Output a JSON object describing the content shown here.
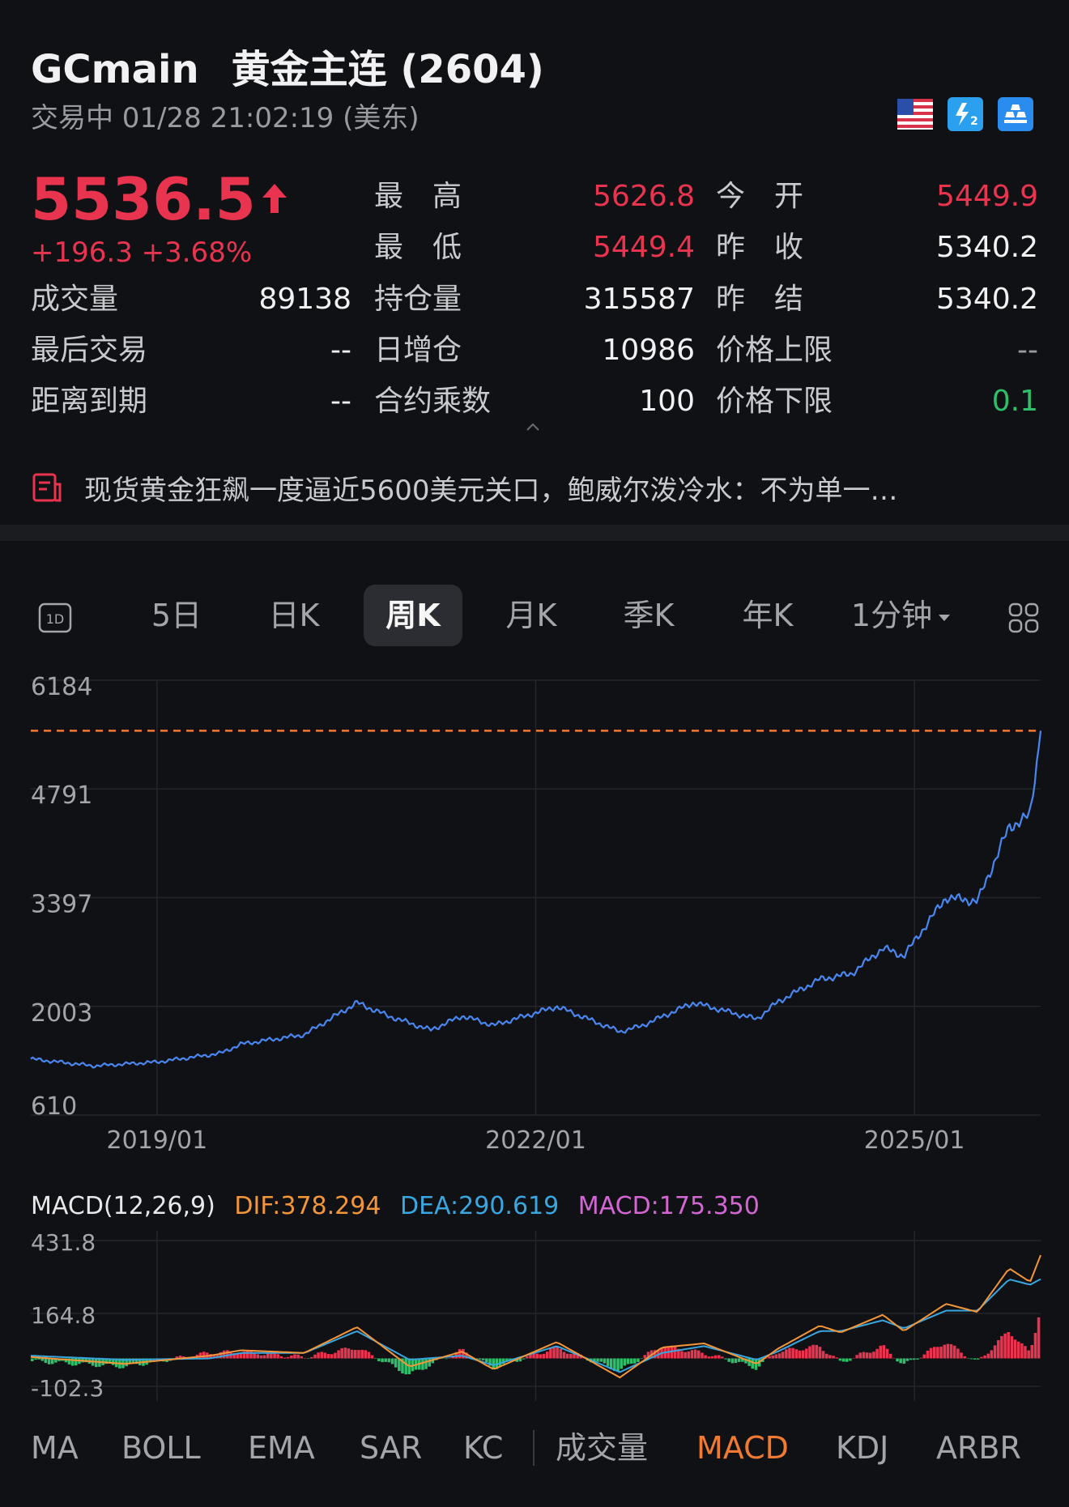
{
  "header": {
    "symbol": "GCmain",
    "name": "黄金主连 (2604)",
    "status_line": "交易中 01/28 21:02:19 (美东)"
  },
  "quote": {
    "price": "5536.5",
    "change": "+196.3 +3.68%",
    "fields": [
      {
        "label": "最　高",
        "value": "5626.8",
        "tone": "red"
      },
      {
        "label": "今　开",
        "value": "5449.9",
        "tone": "red"
      },
      {
        "label": "最　低",
        "value": "5449.4",
        "tone": "red"
      },
      {
        "label": "昨　收",
        "value": "5340.2",
        "tone": "white"
      },
      {
        "label": "成交量",
        "value": "89138",
        "tone": "white"
      },
      {
        "label": "持仓量",
        "value": "315587",
        "tone": "white"
      },
      {
        "label": "昨　结",
        "value": "5340.2",
        "tone": "white"
      },
      {
        "label": "最后交易",
        "value": "--",
        "tone": "white"
      },
      {
        "label": "日增仓",
        "value": "10986",
        "tone": "white"
      },
      {
        "label": "价格上限",
        "value": "--",
        "tone": "dim"
      },
      {
        "label": "距离到期",
        "value": "--",
        "tone": "white"
      },
      {
        "label": "合约乘数",
        "value": "100",
        "tone": "white"
      },
      {
        "label": "价格下限",
        "value": "0.1",
        "tone": "green"
      }
    ]
  },
  "news": {
    "headline": "现货黄金狂飙一度逼近5600美元关口，鲍威尔泼冷水：不为单一…"
  },
  "tabs": [
    "1D",
    "5日",
    "日K",
    "周K",
    "月K",
    "季K",
    "年K",
    "1分钟"
  ],
  "active_tab": "周K",
  "macd_legend": {
    "name": "MACD(12,26,9)",
    "dif": "DIF:378.294",
    "dea": "DEA:290.619",
    "macd": "MACD:175.350"
  },
  "indicators": [
    "MA",
    "BOLL",
    "EMA",
    "SAR",
    "KC",
    "成交量",
    "MACD",
    "KDJ",
    "ARBR"
  ],
  "active_indicator": "MACD",
  "colors": {
    "up": "#e8344e",
    "down": "#2fbf6a",
    "line": "#4a86f0",
    "dif": "#f3963a",
    "dea": "#3aa6e0",
    "macd": "#d466d4",
    "ref": "#f07a32"
  },
  "chart_data": [
    {
      "type": "line",
      "title": "",
      "x_ticks": [
        "2019/01",
        "2022/01",
        "2025/01"
      ],
      "y_ticks": [
        6184,
        4791,
        3397,
        2003,
        610
      ],
      "ylim": [
        610,
        6184
      ],
      "reference_line": 5536.5,
      "series": [
        {
          "x": [
            "2018/01",
            "2018/07",
            "2019/01",
            "2019/07",
            "2019/09",
            "2020/03",
            "2020/08",
            "2020/11",
            "2021/03",
            "2021/06",
            "2021/09",
            "2022/03",
            "2022/09",
            "2022/11",
            "2023/04",
            "2023/10",
            "2023/12",
            "2024/04",
            "2024/07",
            "2024/10",
            "2024/12",
            "2025/04",
            "2025/07",
            "2025/10",
            "2025/12",
            "2026/01"
          ],
          "y": [
            1330,
            1240,
            1290,
            1400,
            1520,
            1640,
            2050,
            1880,
            1700,
            1880,
            1760,
            2000,
            1680,
            1750,
            2050,
            1840,
            2060,
            2350,
            2420,
            2750,
            2650,
            3400,
            3350,
            4300,
            4450,
            5536.5
          ]
        }
      ]
    },
    {
      "type": "line",
      "title": "",
      "y_ticks": [
        431.8,
        164.8,
        -102.3
      ],
      "ylim": [
        -102.3,
        431.8
      ],
      "series": [
        {
          "name": "DIF",
          "x": [
            "2018/01",
            "2018/10",
            "2019/06",
            "2019/09",
            "2020/03",
            "2020/08",
            "2021/01",
            "2021/06",
            "2021/09",
            "2022/03",
            "2022/09",
            "2023/01",
            "2023/05",
            "2023/10",
            "2023/12",
            "2024/04",
            "2024/06",
            "2024/10",
            "2024/12",
            "2025/04",
            "2025/07",
            "2025/10",
            "2025/12",
            "2026/01"
          ],
          "y": [
            5,
            -20,
            10,
            30,
            20,
            115,
            -30,
            25,
            -40,
            60,
            -70,
            40,
            55,
            -20,
            35,
            120,
            95,
            160,
            100,
            200,
            170,
            330,
            280,
            378.294
          ]
        },
        {
          "name": "DEA",
          "x": [
            "2018/01",
            "2018/10",
            "2019/06",
            "2019/09",
            "2020/03",
            "2020/08",
            "2021/01",
            "2021/06",
            "2021/09",
            "2022/03",
            "2022/09",
            "2023/01",
            "2023/05",
            "2023/10",
            "2023/12",
            "2024/04",
            "2024/06",
            "2024/10",
            "2024/12",
            "2025/04",
            "2025/07",
            "2025/10",
            "2025/12",
            "2026/01"
          ],
          "y": [
            10,
            -5,
            0,
            20,
            20,
            100,
            -5,
            10,
            -25,
            45,
            -50,
            20,
            45,
            -5,
            25,
            100,
            100,
            140,
            110,
            175,
            175,
            290,
            270,
            290.619
          ]
        },
        {
          "name": "MACD",
          "x": [
            "2018/01",
            "2018/10",
            "2019/06",
            "2019/09",
            "2020/03",
            "2020/08",
            "2021/01",
            "2021/06",
            "2021/09",
            "2022/03",
            "2022/09",
            "2023/01",
            "2023/05",
            "2023/10",
            "2023/12",
            "2024/04",
            "2024/06",
            "2024/10",
            "2024/12",
            "2025/04",
            "2025/07",
            "2025/10",
            "2025/12",
            "2026/01"
          ],
          "y": [
            -10,
            -30,
            20,
            25,
            5,
            40,
            -60,
            30,
            -35,
            40,
            -45,
            45,
            20,
            -35,
            25,
            45,
            -15,
            45,
            -25,
            60,
            -15,
            100,
            20,
            175.35
          ]
        }
      ]
    }
  ]
}
